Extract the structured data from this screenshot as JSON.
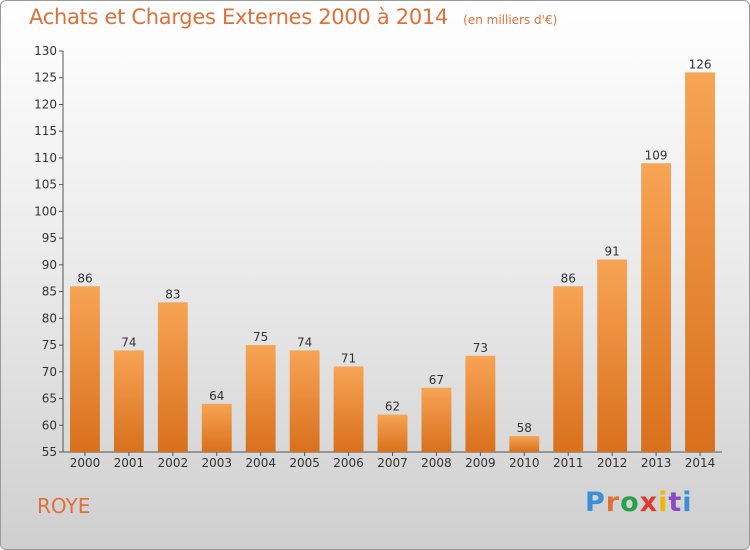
{
  "title": "Achats et Charges Externes 2000 à 2014",
  "unit_note": "(en milliers d'€)",
  "city": "ROYE",
  "brand": {
    "text": "Proxiti",
    "colors": [
      "#3a8fd6",
      "#e0703a",
      "#2aa04a",
      "#e23a2a",
      "#f2b600",
      "#8a4bc2",
      "#3a8fd6"
    ]
  },
  "colors": {
    "title": "#e0703a",
    "bar_light": "#f7a455",
    "bar_dark": "#d9701c"
  },
  "chart_data": {
    "type": "bar",
    "title": "Achats et Charges Externes 2000 à 2014",
    "xlabel": "",
    "ylabel": "",
    "categories": [
      "2000",
      "2001",
      "2002",
      "2003",
      "2004",
      "2005",
      "2006",
      "2007",
      "2008",
      "2009",
      "2010",
      "2011",
      "2012",
      "2013",
      "2014"
    ],
    "values": [
      86,
      74,
      83,
      64,
      75,
      74,
      71,
      62,
      67,
      73,
      58,
      86,
      91,
      109,
      126
    ],
    "ylim": [
      55,
      130
    ],
    "yticks": [
      55,
      60,
      65,
      70,
      75,
      80,
      85,
      90,
      95,
      100,
      105,
      110,
      115,
      120,
      125,
      130
    ],
    "grid": false,
    "legend": "none"
  }
}
